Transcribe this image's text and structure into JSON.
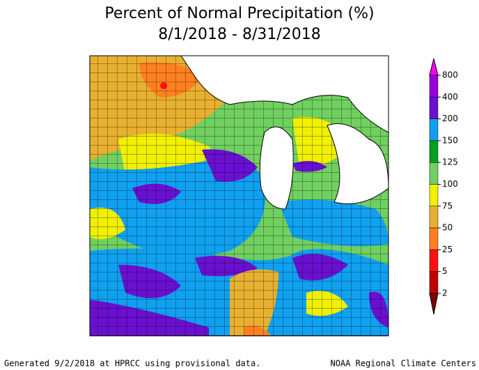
{
  "header": {
    "title": "Percent of Normal Precipitation (%)",
    "subtitle": "8/1/2018 - 8/31/2018"
  },
  "legend": {
    "labels": [
      "800",
      "400",
      "200",
      "150",
      "125",
      "100",
      "75",
      "50",
      "25",
      "5",
      "2"
    ],
    "colors": [
      "#ff00ff",
      "#9a00d8",
      "#6a10d0",
      "#10a0f0",
      "#00a020",
      "#70d060",
      "#f0f000",
      "#e8b030",
      "#ff8020",
      "#ff1010",
      "#c00000",
      "#800000"
    ]
  },
  "footer": {
    "left": "Generated 9/2/2018 at HPRCC using provisional data.",
    "right": "NOAA Regional Climate Centers"
  }
}
